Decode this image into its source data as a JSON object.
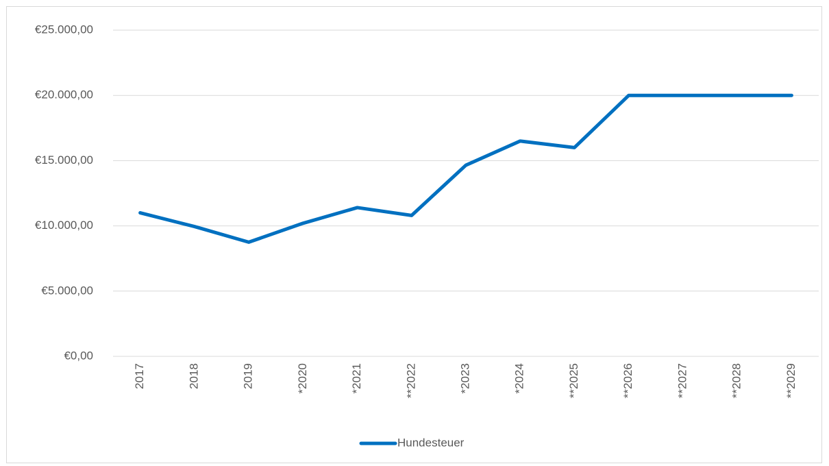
{
  "chart_data": {
    "type": "line",
    "categories": [
      "2017",
      "2018",
      "2019",
      "*2020",
      "*2021",
      "**2022",
      "*2023",
      "*2024",
      "**2025",
      "**2026",
      "**2027",
      "**2028",
      "**2029"
    ],
    "series": [
      {
        "name": "Hundesteuer",
        "color": "#0070c0",
        "values": [
          11000,
          9950,
          8750,
          10200,
          11400,
          10800,
          14650,
          16500,
          16000,
          20000,
          20000,
          20000,
          20000
        ]
      }
    ],
    "ylim": [
      0,
      25000
    ],
    "yticks": [
      {
        "value": 0,
        "label": "€0,00"
      },
      {
        "value": 5000,
        "label": "€5.000,00"
      },
      {
        "value": 10000,
        "label": "€10.000,00"
      },
      {
        "value": 15000,
        "label": "€15.000,00"
      },
      {
        "value": 20000,
        "label": "€20.000,00"
      },
      {
        "value": 25000,
        "label": "€25.000,00"
      }
    ],
    "grid": true,
    "legend": "bottom"
  }
}
